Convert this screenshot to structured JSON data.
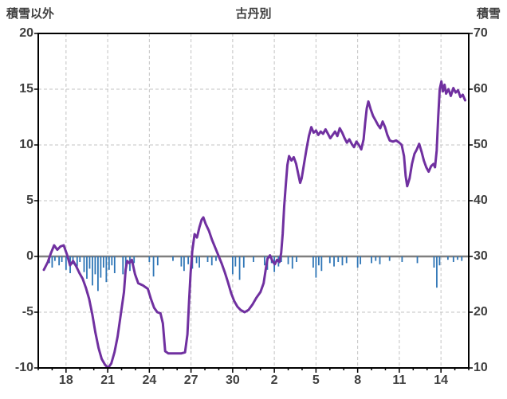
{
  "chart_data": {
    "type": "line",
    "title": "古丹別",
    "left_axis": {
      "label": "積雪以外",
      "min": -10,
      "max": 20,
      "ticks": [
        20,
        15,
        10,
        5,
        0,
        -5,
        -10
      ]
    },
    "right_axis": {
      "label": "積雪",
      "min": 10,
      "max": 70,
      "ticks": [
        70,
        60,
        50,
        40,
        30,
        20,
        10
      ]
    },
    "x_axis": {
      "min": 0,
      "max": 31,
      "tick_days": [
        2,
        5,
        8,
        11,
        14,
        17,
        20,
        23,
        26,
        29
      ],
      "tick_labels": [
        "18",
        "21",
        "24",
        "27",
        "30",
        "2",
        "5",
        "8",
        "11",
        "14"
      ]
    },
    "colors": {
      "line": "#7030a0",
      "bars": "#2e75b6",
      "grid": "#c3c3c3",
      "zero_line": "#7f7f7f",
      "border": "#000000",
      "text": "#404040",
      "background": "#ffffff"
    },
    "series": [
      {
        "name": "積雪",
        "type": "line",
        "axis": "right",
        "color": "#7030a0",
        "points": [
          [
            0.4,
            27.6
          ],
          [
            0.69,
            29
          ],
          [
            0.91,
            30.6
          ],
          [
            1.14,
            32
          ],
          [
            1.37,
            31.2
          ],
          [
            1.6,
            31.8
          ],
          [
            1.83,
            32
          ],
          [
            2.06,
            30.4
          ],
          [
            2.29,
            28.4
          ],
          [
            2.51,
            29.2
          ],
          [
            2.74,
            28.2
          ],
          [
            2.97,
            27
          ],
          [
            3.2,
            26
          ],
          [
            3.43,
            24.4
          ],
          [
            3.66,
            22.4
          ],
          [
            3.89,
            19.6
          ],
          [
            4.11,
            16.4
          ],
          [
            4.34,
            13.6
          ],
          [
            4.57,
            11.6
          ],
          [
            4.8,
            10.6
          ],
          [
            5.03,
            10
          ],
          [
            5.26,
            10.8
          ],
          [
            5.49,
            12.8
          ],
          [
            5.71,
            15.6
          ],
          [
            5.94,
            19.6
          ],
          [
            6.17,
            23.6
          ],
          [
            6.29,
            27.6
          ],
          [
            6.4,
            29.2
          ],
          [
            6.57,
            28.8
          ],
          [
            6.74,
            29.4
          ],
          [
            6.97,
            26.8
          ],
          [
            7.2,
            25.2
          ],
          [
            7.54,
            24.8
          ],
          [
            7.89,
            24.2
          ],
          [
            8.11,
            22.4
          ],
          [
            8.34,
            20.8
          ],
          [
            8.57,
            20
          ],
          [
            8.8,
            19.8
          ],
          [
            8.97,
            18
          ],
          [
            9.14,
            13
          ],
          [
            9.37,
            12.6
          ],
          [
            9.83,
            12.6
          ],
          [
            10.29,
            12.6
          ],
          [
            10.57,
            12.8
          ],
          [
            10.74,
            16
          ],
          [
            10.86,
            22
          ],
          [
            10.97,
            27
          ],
          [
            11.09,
            31
          ],
          [
            11.26,
            34
          ],
          [
            11.43,
            33.4
          ],
          [
            11.6,
            35.2
          ],
          [
            11.77,
            36.6
          ],
          [
            11.89,
            37
          ],
          [
            12.06,
            35.8
          ],
          [
            12.29,
            34.6
          ],
          [
            12.51,
            33
          ],
          [
            12.74,
            31.6
          ],
          [
            12.97,
            30.2
          ],
          [
            13.2,
            28.8
          ],
          [
            13.43,
            27.2
          ],
          [
            13.66,
            25.4
          ],
          [
            13.89,
            23.4
          ],
          [
            14.11,
            22
          ],
          [
            14.34,
            21
          ],
          [
            14.57,
            20.4
          ],
          [
            14.86,
            20
          ],
          [
            15.14,
            20.4
          ],
          [
            15.43,
            21.4
          ],
          [
            15.71,
            22.6
          ],
          [
            16.0,
            23.6
          ],
          [
            16.23,
            25.2
          ],
          [
            16.4,
            28
          ],
          [
            16.51,
            29.6
          ],
          [
            16.69,
            30.2
          ],
          [
            16.86,
            29.2
          ],
          [
            17.03,
            28.6
          ],
          [
            17.2,
            29.4
          ],
          [
            17.37,
            29
          ],
          [
            17.49,
            30.6
          ],
          [
            17.6,
            34
          ],
          [
            17.71,
            39
          ],
          [
            17.83,
            43
          ],
          [
            17.94,
            46.4
          ],
          [
            18.06,
            48
          ],
          [
            18.23,
            47.2
          ],
          [
            18.4,
            47.8
          ],
          [
            18.57,
            46.6
          ],
          [
            18.74,
            44.6
          ],
          [
            18.86,
            43.2
          ],
          [
            18.97,
            44
          ],
          [
            19.14,
            46.6
          ],
          [
            19.31,
            49.2
          ],
          [
            19.49,
            51.6
          ],
          [
            19.66,
            53.2
          ],
          [
            19.83,
            52.2
          ],
          [
            20.0,
            52.6
          ],
          [
            20.17,
            51.8
          ],
          [
            20.34,
            52.4
          ],
          [
            20.51,
            52
          ],
          [
            20.69,
            52.8
          ],
          [
            20.86,
            52
          ],
          [
            21.03,
            51.2
          ],
          [
            21.2,
            51.8
          ],
          [
            21.37,
            52.4
          ],
          [
            21.54,
            51.6
          ],
          [
            21.71,
            53
          ],
          [
            21.89,
            52.2
          ],
          [
            22.06,
            51.2
          ],
          [
            22.23,
            50.4
          ],
          [
            22.4,
            51
          ],
          [
            22.57,
            50.2
          ],
          [
            22.74,
            49.6
          ],
          [
            22.91,
            50.6
          ],
          [
            23.09,
            50
          ],
          [
            23.26,
            49.2
          ],
          [
            23.43,
            51
          ],
          [
            23.54,
            54
          ],
          [
            23.66,
            56.6
          ],
          [
            23.77,
            57.8
          ],
          [
            23.94,
            56.4
          ],
          [
            24.11,
            55.2
          ],
          [
            24.29,
            54.4
          ],
          [
            24.46,
            53.6
          ],
          [
            24.63,
            53
          ],
          [
            24.8,
            54.2
          ],
          [
            24.97,
            53.2
          ],
          [
            25.14,
            51.8
          ],
          [
            25.31,
            50.8
          ],
          [
            25.54,
            50.6
          ],
          [
            25.77,
            50.8
          ],
          [
            26.0,
            50.4
          ],
          [
            26.17,
            50
          ],
          [
            26.34,
            48
          ],
          [
            26.46,
            44.4
          ],
          [
            26.57,
            42.6
          ],
          [
            26.74,
            44
          ],
          [
            26.91,
            46.6
          ],
          [
            27.09,
            48.4
          ],
          [
            27.26,
            49.2
          ],
          [
            27.43,
            50.2
          ],
          [
            27.6,
            48.8
          ],
          [
            27.77,
            47.2
          ],
          [
            27.94,
            46
          ],
          [
            28.11,
            45.2
          ],
          [
            28.29,
            46.2
          ],
          [
            28.46,
            46.6
          ],
          [
            28.57,
            46
          ],
          [
            28.69,
            49
          ],
          [
            28.8,
            55
          ],
          [
            28.91,
            60
          ],
          [
            29.03,
            61.4
          ],
          [
            29.14,
            59.6
          ],
          [
            29.26,
            60.8
          ],
          [
            29.37,
            59.2
          ],
          [
            29.54,
            60
          ],
          [
            29.71,
            58.8
          ],
          [
            29.89,
            60.2
          ],
          [
            30.06,
            59.4
          ],
          [
            30.23,
            59.8
          ],
          [
            30.4,
            58.6
          ],
          [
            30.57,
            59
          ],
          [
            30.74,
            58
          ]
        ]
      },
      {
        "name": "積雪以外",
        "type": "bar",
        "axis": "left",
        "color": "#2e75b6",
        "points": [
          [
            0.8,
            -0.6
          ],
          [
            1.0,
            -1.0
          ],
          [
            1.2,
            -0.4
          ],
          [
            1.5,
            -0.8
          ],
          [
            1.7,
            -0.5
          ],
          [
            2.0,
            -1.2
          ],
          [
            2.3,
            -1.5
          ],
          [
            2.5,
            -0.7
          ],
          [
            2.8,
            -0.9
          ],
          [
            3.0,
            -0.5
          ],
          [
            3.3,
            -1.4
          ],
          [
            3.5,
            -2.0
          ],
          [
            3.7,
            -1.1
          ],
          [
            3.9,
            -2.6
          ],
          [
            4.1,
            -1.6
          ],
          [
            4.3,
            -3.1
          ],
          [
            4.5,
            -1.9
          ],
          [
            4.7,
            -1.0
          ],
          [
            4.9,
            -2.3
          ],
          [
            5.1,
            -1.2
          ],
          [
            5.3,
            -0.8
          ],
          [
            5.5,
            -1.5
          ],
          [
            6.1,
            -1.6
          ],
          [
            6.3,
            -0.9
          ],
          [
            6.6,
            -1.3
          ],
          [
            6.9,
            -0.6
          ],
          [
            8.0,
            -0.5
          ],
          [
            8.3,
            -1.8
          ],
          [
            8.6,
            -0.8
          ],
          [
            9.7,
            -0.4
          ],
          [
            10.3,
            -0.9
          ],
          [
            10.5,
            -1.3
          ],
          [
            10.8,
            -0.7
          ],
          [
            11.1,
            -1.1
          ],
          [
            11.4,
            -0.6
          ],
          [
            11.6,
            -1.0
          ],
          [
            12.2,
            -0.5
          ],
          [
            12.5,
            -0.8
          ],
          [
            12.8,
            -0.4
          ],
          [
            14.0,
            -1.6
          ],
          [
            14.2,
            -0.9
          ],
          [
            14.5,
            -2.1
          ],
          [
            14.8,
            -1.0
          ],
          [
            15.5,
            -0.5
          ],
          [
            16.3,
            -0.8
          ],
          [
            16.5,
            -1.2
          ],
          [
            16.8,
            -0.6
          ],
          [
            17.0,
            -1.4
          ],
          [
            17.3,
            -0.9
          ],
          [
            17.5,
            -0.5
          ],
          [
            18.0,
            -0.7
          ],
          [
            18.3,
            -1.1
          ],
          [
            18.6,
            -0.5
          ],
          [
            19.8,
            -1.0
          ],
          [
            20.0,
            -1.9
          ],
          [
            20.2,
            -0.8
          ],
          [
            20.4,
            -1.3
          ],
          [
            21.0,
            -0.6
          ],
          [
            21.3,
            -0.9
          ],
          [
            21.6,
            -0.5
          ],
          [
            21.9,
            -0.8
          ],
          [
            22.2,
            -0.6
          ],
          [
            23.0,
            -1.0
          ],
          [
            23.2,
            -0.7
          ],
          [
            24.0,
            -0.6
          ],
          [
            24.3,
            -0.4
          ],
          [
            24.6,
            -0.7
          ],
          [
            25.3,
            -0.4
          ],
          [
            26.2,
            -0.5
          ],
          [
            27.3,
            -0.6
          ],
          [
            28.5,
            -1.0
          ],
          [
            28.7,
            -2.8
          ],
          [
            28.9,
            -0.8
          ],
          [
            29.5,
            -0.3
          ],
          [
            29.9,
            -0.5
          ],
          [
            30.2,
            -0.3
          ],
          [
            30.5,
            -0.4
          ]
        ]
      }
    ]
  }
}
